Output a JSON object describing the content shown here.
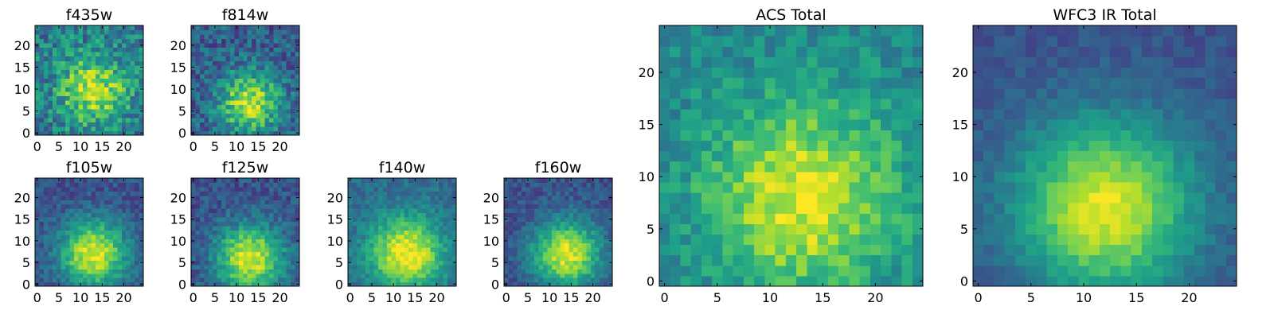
{
  "chart_data": [
    {
      "type": "heatmap",
      "title": "f435w",
      "grid": false,
      "xlim": [
        0,
        25
      ],
      "ylim": [
        0,
        25
      ],
      "x_ticks": [
        "0",
        "5",
        "10",
        "15",
        "20"
      ],
      "y_ticks": [
        "0",
        "5",
        "10",
        "15",
        "20"
      ],
      "pattern": {
        "peak": [
          13,
          10
        ],
        "spread": 5.5,
        "noise": 0.42,
        "base": 0.4,
        "level": 0.5,
        "seed": 11
      }
    },
    {
      "type": "heatmap",
      "title": "f814w",
      "grid": false,
      "xlim": [
        0,
        25
      ],
      "ylim": [
        0,
        25
      ],
      "x_ticks": [
        "0",
        "5",
        "10",
        "15",
        "20"
      ],
      "y_ticks": [
        "0",
        "5",
        "10",
        "15",
        "20"
      ],
      "pattern": {
        "peak": [
          13,
          7
        ],
        "spread": 5,
        "noise": 0.36,
        "base": 0.3,
        "level": 0.6,
        "seed": 23
      }
    },
    {
      "type": "heatmap",
      "title": "f105w",
      "grid": false,
      "xlim": [
        0,
        25
      ],
      "ylim": [
        0,
        25
      ],
      "x_ticks": [
        "0",
        "5",
        "10",
        "15",
        "20"
      ],
      "y_ticks": [
        "0",
        "5",
        "10",
        "15",
        "20"
      ],
      "pattern": {
        "peak": [
          13,
          7
        ],
        "spread": 5.5,
        "noise": 0.22,
        "base": 0.25,
        "level": 0.7,
        "seed": 37
      }
    },
    {
      "type": "heatmap",
      "title": "f125w",
      "grid": false,
      "xlim": [
        0,
        25
      ],
      "ylim": [
        0,
        25
      ],
      "x_ticks": [
        "0",
        "5",
        "10",
        "15",
        "20"
      ],
      "y_ticks": [
        "0",
        "5",
        "10",
        "15",
        "20"
      ],
      "pattern": {
        "peak": [
          13,
          6
        ],
        "spread": 5.5,
        "noise": 0.24,
        "base": 0.25,
        "level": 0.7,
        "seed": 41
      }
    },
    {
      "type": "heatmap",
      "title": "f140w",
      "grid": false,
      "xlim": [
        0,
        25
      ],
      "ylim": [
        0,
        25
      ],
      "x_ticks": [
        "0",
        "5",
        "10",
        "15",
        "20"
      ],
      "y_ticks": [
        "0",
        "5",
        "10",
        "15",
        "20"
      ],
      "pattern": {
        "peak": [
          13,
          7
        ],
        "spread": 6,
        "noise": 0.2,
        "base": 0.35,
        "level": 0.65,
        "seed": 53
      }
    },
    {
      "type": "heatmap",
      "title": "f160w",
      "grid": false,
      "xlim": [
        0,
        25
      ],
      "ylim": [
        0,
        25
      ],
      "x_ticks": [
        "0",
        "5",
        "10",
        "15",
        "20"
      ],
      "y_ticks": [
        "0",
        "5",
        "10",
        "15",
        "20"
      ],
      "pattern": {
        "peak": [
          14,
          7
        ],
        "spread": 5.5,
        "noise": 0.2,
        "base": 0.25,
        "level": 0.7,
        "seed": 67
      }
    },
    {
      "type": "heatmap",
      "title": "ACS Total",
      "grid": false,
      "xlim": [
        0,
        25
      ],
      "ylim": [
        0,
        25
      ],
      "x_ticks": [
        "0",
        "5",
        "10",
        "15",
        "20"
      ],
      "y_ticks": [
        "0",
        "5",
        "10",
        "15",
        "20"
      ],
      "pattern": {
        "peak": [
          13,
          8
        ],
        "spread": 6.5,
        "noise": 0.24,
        "base": 0.45,
        "level": 0.5,
        "seed": 79
      }
    },
    {
      "type": "heatmap",
      "title": "WFC3 IR Total",
      "grid": false,
      "xlim": [
        0,
        25
      ],
      "ylim": [
        0,
        25
      ],
      "x_ticks": [
        "0",
        "5",
        "10",
        "15",
        "20"
      ],
      "y_ticks": [
        "0",
        "5",
        "10",
        "15",
        "20"
      ],
      "pattern": {
        "peak": [
          12,
          7
        ],
        "spread": 6,
        "noise": 0.12,
        "base": 0.25,
        "level": 0.7,
        "seed": 97
      }
    }
  ],
  "colormap": [
    "#440154",
    "#482878",
    "#3e4989",
    "#31688e",
    "#26828e",
    "#1f9e89",
    "#35b779",
    "#6ece58",
    "#b5de2b",
    "#fde725"
  ]
}
